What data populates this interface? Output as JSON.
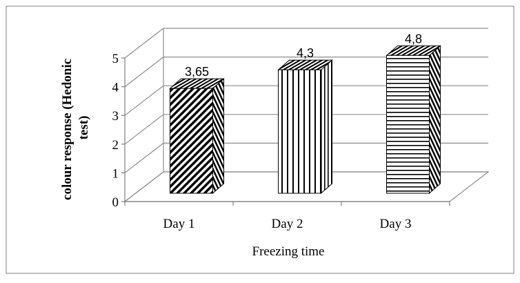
{
  "chart_data": {
    "type": "bar",
    "style": "3d-column",
    "categories": [
      "Day 1",
      "Day 2",
      "Day 3"
    ],
    "values": [
      3.65,
      4.3,
      4.8
    ],
    "data_labels": [
      "3,65",
      "4,3",
      "4,8"
    ],
    "xlabel": "Freezing time",
    "ylabel_lines": [
      "colour response (Hedonic",
      "test)"
    ],
    "ylim": [
      0,
      5
    ],
    "yticks": [
      "0",
      "1",
      "2",
      "3",
      "4",
      "5"
    ],
    "grid": true,
    "legend": "none",
    "patterns": [
      "diagonal-stripes",
      "vertical-stripes",
      "horizontal-stripes"
    ],
    "colors": {
      "stroke": "#000000",
      "grid": "#8c8c8c",
      "frame": "#7f7f7f",
      "fill": "#ffffff"
    }
  }
}
